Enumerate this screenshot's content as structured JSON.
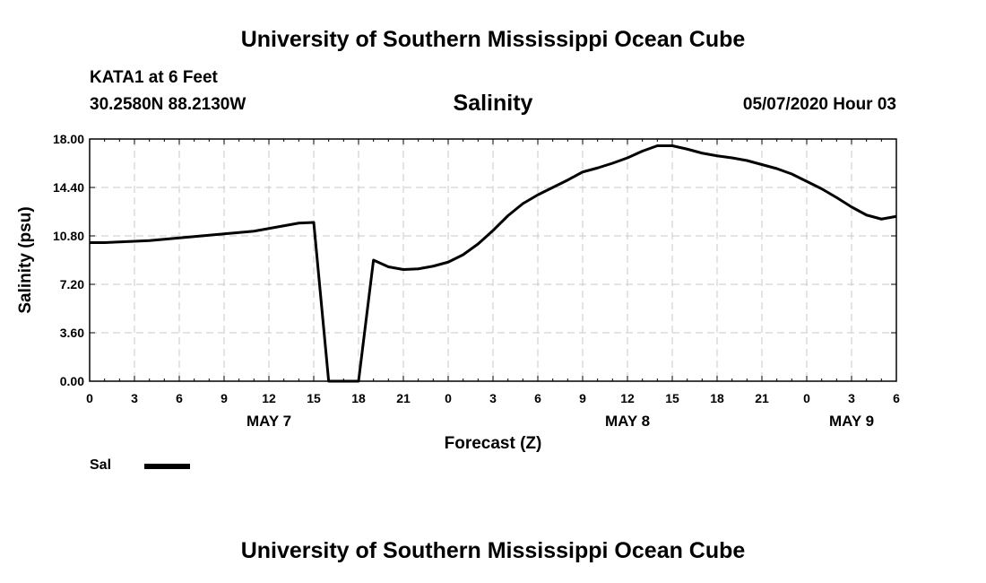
{
  "header": {
    "title": "University of Southern Mississippi Ocean Cube",
    "station": "KATA1 at 6 Feet",
    "location": "30.2580N 88.2130W",
    "chart_title": "Salinity",
    "issued": "05/07/2020 Hour 03"
  },
  "footer": {
    "title": "University of Southern Mississippi Ocean Cube"
  },
  "legend": {
    "label": "Sal",
    "color": "#000000"
  },
  "chart_data": {
    "type": "line",
    "title": "Salinity",
    "xlabel": "Forecast (Z)",
    "ylabel": "Salinity (psu)",
    "xlim": [
      0,
      54
    ],
    "ylim": [
      0,
      18
    ],
    "grid": true,
    "legend_position": "bottom-left",
    "y_ticks": [
      "0.00",
      "3.60",
      "7.20",
      "10.80",
      "14.40",
      "18.00"
    ],
    "x_ticks": [
      {
        "h": 0,
        "label": "0"
      },
      {
        "h": 3,
        "label": "3"
      },
      {
        "h": 6,
        "label": "6"
      },
      {
        "h": 9,
        "label": "9"
      },
      {
        "h": 12,
        "label": "12"
      },
      {
        "h": 15,
        "label": "15"
      },
      {
        "h": 18,
        "label": "18"
      },
      {
        "h": 21,
        "label": "21"
      },
      {
        "h": 24,
        "label": "0"
      },
      {
        "h": 27,
        "label": "3"
      },
      {
        "h": 30,
        "label": "6"
      },
      {
        "h": 33,
        "label": "9"
      },
      {
        "h": 36,
        "label": "12"
      },
      {
        "h": 39,
        "label": "15"
      },
      {
        "h": 42,
        "label": "18"
      },
      {
        "h": 45,
        "label": "21"
      },
      {
        "h": 48,
        "label": "0"
      },
      {
        "h": 51,
        "label": "3"
      },
      {
        "h": 54,
        "label": "6"
      }
    ],
    "day_labels": [
      {
        "h": 12,
        "label": "MAY 7"
      },
      {
        "h": 36,
        "label": "MAY 8"
      },
      {
        "h": 51,
        "label": "MAY 9"
      }
    ],
    "series": [
      {
        "name": "Sal",
        "color": "#000000",
        "points": [
          [
            0,
            10.3
          ],
          [
            1,
            10.3
          ],
          [
            2,
            10.35
          ],
          [
            3,
            10.4
          ],
          [
            4,
            10.45
          ],
          [
            5,
            10.55
          ],
          [
            6,
            10.65
          ],
          [
            7,
            10.75
          ],
          [
            8,
            10.85
          ],
          [
            9,
            10.95
          ],
          [
            10,
            11.05
          ],
          [
            11,
            11.15
          ],
          [
            12,
            11.35
          ],
          [
            13,
            11.55
          ],
          [
            14,
            11.75
          ],
          [
            15,
            11.8
          ],
          [
            16,
            0.0
          ],
          [
            17,
            0.0
          ],
          [
            18,
            0.0
          ],
          [
            19,
            9.0
          ],
          [
            20,
            8.5
          ],
          [
            21,
            8.3
          ],
          [
            22,
            8.35
          ],
          [
            23,
            8.55
          ],
          [
            24,
            8.85
          ],
          [
            25,
            9.4
          ],
          [
            26,
            10.2
          ],
          [
            27,
            11.2
          ],
          [
            28,
            12.3
          ],
          [
            29,
            13.2
          ],
          [
            30,
            13.85
          ],
          [
            31,
            14.4
          ],
          [
            32,
            14.95
          ],
          [
            33,
            15.55
          ],
          [
            34,
            15.85
          ],
          [
            35,
            16.2
          ],
          [
            36,
            16.6
          ],
          [
            37,
            17.1
          ],
          [
            38,
            17.5
          ],
          [
            39,
            17.5
          ],
          [
            40,
            17.25
          ],
          [
            41,
            16.95
          ],
          [
            42,
            16.75
          ],
          [
            43,
            16.6
          ],
          [
            44,
            16.4
          ],
          [
            45,
            16.1
          ],
          [
            46,
            15.8
          ],
          [
            47,
            15.4
          ],
          [
            48,
            14.85
          ],
          [
            49,
            14.3
          ],
          [
            50,
            13.65
          ],
          [
            51,
            12.95
          ],
          [
            52,
            12.35
          ],
          [
            53,
            12.05
          ],
          [
            54,
            12.25
          ]
        ]
      }
    ]
  }
}
